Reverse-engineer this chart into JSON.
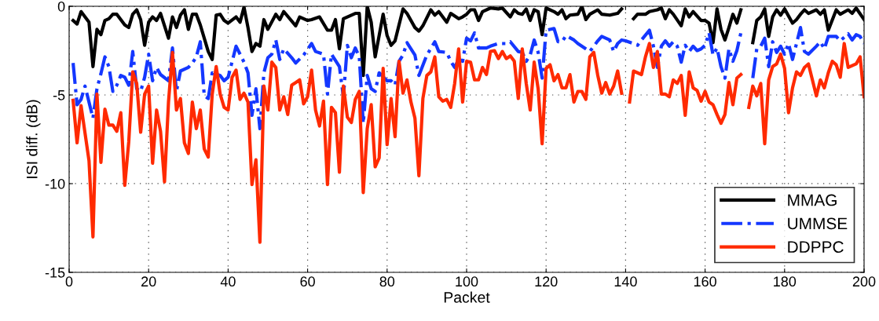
{
  "chart_data": {
    "type": "line",
    "xlabel": "Packet",
    "ylabel": "ISI diff. (dB)",
    "xlim": [
      0,
      200
    ],
    "xticks": [
      0,
      20,
      40,
      60,
      80,
      100,
      120,
      140,
      160,
      180,
      200
    ],
    "ylim": [
      -15,
      0
    ],
    "yticks": [
      -15,
      -10,
      -5,
      0
    ],
    "grid": true,
    "legend": "bottom right",
    "marker": "none",
    "series": [
      {
        "name": "MMAG",
        "color": "#000000",
        "line_style": "solid",
        "x": [
          1,
          2,
          3,
          5,
          6,
          7,
          8,
          9,
          10,
          11,
          12,
          14,
          15,
          16,
          17,
          18,
          19,
          20,
          21,
          22,
          23,
          24,
          25,
          26,
          27,
          28,
          29,
          30,
          31,
          32,
          33,
          35,
          36,
          37,
          38,
          39,
          40,
          42,
          43,
          44,
          45,
          46,
          47,
          48,
          49,
          50,
          52,
          53,
          54,
          57,
          58,
          60,
          61,
          63,
          65,
          66,
          67,
          68,
          69,
          70,
          72,
          73,
          74,
          75,
          76,
          77,
          79,
          80,
          81,
          82,
          84,
          85,
          87,
          88,
          89,
          91,
          92,
          93,
          95,
          96,
          98,
          99,
          100,
          101,
          102,
          103,
          104,
          106,
          108,
          109,
          111,
          112,
          113,
          114,
          115,
          116,
          117,
          118,
          119,
          120,
          122,
          123,
          124,
          125,
          126,
          128,
          129,
          130,
          131,
          133,
          134,
          136,
          138,
          139,
          140,
          142,
          143,
          145,
          146,
          148,
          149,
          150,
          151,
          152,
          154,
          155,
          156,
          157,
          159,
          160,
          161,
          162,
          163,
          164,
          165,
          166,
          167,
          168,
          169,
          170,
          172,
          173,
          174,
          175,
          176,
          177,
          178,
          179,
          180,
          182,
          183,
          184,
          185,
          186,
          188,
          189,
          190,
          191,
          193,
          194,
          196,
          197,
          198,
          200
        ],
        "values": [
          -0.8,
          -1,
          -0.3,
          -0.9,
          -3.4,
          -1.3,
          -1.6,
          -0.8,
          -0.7,
          -0.45,
          -0.45,
          -1.05,
          -1.2,
          -0.45,
          -0.2,
          -0.75,
          -2.2,
          -0.9,
          -0.6,
          -0.8,
          -0.4,
          -1.1,
          -1.8,
          -0.6,
          -1.2,
          -0.5,
          -0.2,
          -1.3,
          -0.45,
          -0.45,
          -1.05,
          -2.55,
          -3.0,
          -0.5,
          -0.45,
          -0.8,
          -0.95,
          -0.6,
          -0.9,
          -0.05,
          -1.2,
          -2.55,
          -2.1,
          -2.25,
          -0.75,
          -1.3,
          -0.45,
          -0.75,
          -0.3,
          -1.1,
          -0.6,
          -0.8,
          -0.75,
          -0.6,
          -1.35,
          -1.35,
          -0.75,
          -2.4,
          -0.7,
          -0.6,
          -0.4,
          -0.4,
          -3.9,
          0,
          -0.9,
          -2.85,
          -0.45,
          -1.65,
          -2.2,
          -1.95,
          -0.15,
          -0.4,
          -1.2,
          -1.4,
          -1.1,
          -0.2,
          -0.5,
          -0.3,
          -0.9,
          -0.4,
          -0.7,
          -0.6,
          -0.45,
          -0.2,
          -0.2,
          -0.8,
          -0.3,
          -0.1,
          -0.15,
          -0.1,
          -0.6,
          -0.2,
          -0.4,
          -0.45,
          -0.15,
          -0.8,
          -0.2,
          -0.3,
          -1.6,
          -0.1,
          -0.3,
          -0.45,
          -0.2,
          -0.7,
          -0.5,
          -0.45,
          0,
          -0.75,
          -0.45,
          -0.2,
          -0.45,
          -0.5,
          -0.4,
          -0.15,
          null,
          -0.7,
          -0.45,
          -0.45,
          -0.3,
          -0.2,
          -0.1,
          -0.7,
          -0.2,
          -0.45,
          -1.1,
          -0.15,
          -0.6,
          -0.3,
          -0.8,
          -0.8,
          -0.95,
          -2.05,
          -0.15,
          -1.3,
          -1.9,
          -1.2,
          -0.45,
          -0.95,
          -0.2,
          null,
          -2.05,
          -0.8,
          -0.6,
          -0.15,
          -1.7,
          -0.6,
          -0.2,
          -0.5,
          -0.15,
          -0.95,
          -0.75,
          -0.45,
          -0.2,
          -0.4,
          -0.2,
          -0.45,
          -0.2,
          -1.35,
          -0.2,
          -0.45,
          -0.2,
          -0.4,
          -0.1,
          -0.75
        ]
      },
      {
        "name": "UMMSE",
        "color": "#1437ff",
        "line_style": "dashdot",
        "x": [
          1,
          2,
          3,
          4,
          6,
          7,
          8,
          9,
          10,
          11,
          12,
          13,
          14,
          15,
          16,
          17,
          18,
          19,
          20,
          21,
          22,
          23,
          25,
          26,
          27,
          28,
          30,
          31,
          32,
          33,
          34,
          35,
          36,
          38,
          39,
          40,
          42,
          44,
          45,
          46,
          47,
          48,
          49,
          50,
          51,
          52,
          53,
          54,
          56,
          57,
          59,
          61,
          62,
          64,
          65,
          66,
          68,
          69,
          70,
          71,
          72,
          73,
          74,
          75,
          76,
          77,
          78,
          80,
          81,
          82,
          83,
          84,
          85,
          87,
          88,
          90,
          92,
          93,
          95,
          96,
          97,
          98,
          99,
          100,
          101,
          102,
          103,
          105,
          106,
          108,
          110,
          111,
          113,
          114,
          115,
          116,
          117,
          118,
          119,
          120,
          122,
          123,
          124,
          125,
          127,
          128,
          130,
          131,
          132,
          133,
          134,
          136,
          137,
          138,
          139,
          140,
          142,
          143,
          144,
          146,
          147,
          148,
          149,
          150,
          151,
          152,
          153,
          154,
          155,
          156,
          157,
          158,
          159,
          160,
          161,
          162,
          163,
          164,
          165,
          166,
          167,
          168,
          169,
          170,
          172,
          173,
          174,
          175,
          176,
          177,
          178,
          179,
          180,
          181,
          182,
          183,
          184,
          185,
          186,
          188,
          189,
          190,
          191,
          193,
          194,
          196,
          197,
          198,
          199,
          200
        ],
        "values": [
          -3.2,
          -5.55,
          -5.25,
          -4.5,
          -6.3,
          -4.65,
          -3.8,
          -2.85,
          -3.4,
          -4.8,
          -4.45,
          -3.9,
          -4.0,
          -4.45,
          -2.55,
          -4.65,
          -4.8,
          -4.0,
          -2.7,
          -4.2,
          -3.45,
          -3.85,
          -4.2,
          -2.35,
          -4.8,
          -3.65,
          -3.45,
          -3.2,
          -2.85,
          -2.0,
          -5.05,
          -5.2,
          -3.75,
          -3.9,
          -4.2,
          -4.0,
          -2.25,
          -3.15,
          -3.75,
          -6.15,
          -4.65,
          -6.9,
          -3.75,
          -2.9,
          -2.7,
          -1.9,
          -3.0,
          -2.4,
          -2.9,
          -3.2,
          -2.75,
          -2.1,
          -2.55,
          -2.7,
          -4.95,
          -2.7,
          -3.4,
          -5.1,
          -2.2,
          -2.9,
          -2.35,
          -2.85,
          -6.6,
          -3.9,
          -4.65,
          -4.8,
          -3.75,
          -4.2,
          -4.2,
          -4.45,
          -3.1,
          -2.75,
          -2.05,
          -2.75,
          -3.9,
          -2.75,
          -2.0,
          -2.55,
          -2.6,
          -3.1,
          -3.45,
          -3.0,
          -3.1,
          -1.8,
          -1.95,
          -1.5,
          -2.35,
          -2.35,
          -2.25,
          -2.1,
          -2.1,
          -2.0,
          -2.55,
          -2.6,
          -3.1,
          -2.75,
          -1.9,
          -2.6,
          -4.05,
          -1.35,
          -1.25,
          -2.0,
          -2.0,
          -1.65,
          -1.9,
          -2.1,
          -2.4,
          -2.55,
          -2.25,
          -1.95,
          -1.7,
          -1.9,
          -2.55,
          -2.1,
          -1.9,
          -1.95,
          -2.1,
          -2.2,
          -1.9,
          -1.35,
          -2.25,
          -3.45,
          -2.25,
          -1.95,
          -2.25,
          -2.0,
          -2.25,
          -3.15,
          -2.2,
          -2.55,
          -2.25,
          -2.5,
          -2.4,
          -2.2,
          -1.5,
          -2.75,
          -2.35,
          -3.4,
          -4.05,
          -2.4,
          -3.1,
          -2.5,
          -1.5,
          null,
          -4.05,
          -2.4,
          -2.25,
          -1.8,
          -3.4,
          -2.0,
          -2.6,
          -2.25,
          -2.7,
          -2.1,
          -3.0,
          -2.1,
          -1.2,
          -2.55,
          -2.7,
          -2.25,
          -2.0,
          -2.4,
          -1.7,
          -1.7,
          -1.95,
          -1.55,
          -1.9,
          -1.6,
          -1.7,
          -2.1
        ]
      },
      {
        "name": "DDPPC",
        "color": "#ff2a00",
        "line_style": "solid",
        "x": [
          1,
          2,
          3,
          5,
          6,
          7,
          8,
          9,
          10,
          11,
          12,
          13,
          14,
          15,
          16,
          17,
          18,
          19,
          20,
          21,
          22,
          23,
          24,
          25,
          26,
          27,
          28,
          29,
          30,
          31,
          32,
          33,
          34,
          35,
          36,
          37,
          38,
          39,
          40,
          41,
          42,
          43,
          44,
          45,
          46,
          47,
          48,
          49,
          50,
          51,
          52,
          53,
          54,
          55,
          56,
          57,
          58,
          59,
          60,
          61,
          62,
          63,
          64,
          65,
          66,
          67,
          68,
          69,
          70,
          71,
          72,
          73,
          74,
          75,
          76,
          77,
          78,
          79,
          80,
          81,
          82,
          83,
          84,
          85,
          86,
          87,
          88,
          89,
          90,
          91,
          92,
          93,
          94,
          95,
          96,
          97,
          98,
          99,
          100,
          101,
          102,
          103,
          104,
          105,
          106,
          107,
          108,
          109,
          110,
          111,
          112,
          113,
          114,
          115,
          116,
          117,
          118,
          119,
          120,
          121,
          122,
          123,
          124,
          125,
          126,
          127,
          128,
          129,
          130,
          131,
          132,
          133,
          134,
          135,
          136,
          137,
          138,
          139,
          140,
          141,
          142,
          143,
          144,
          145,
          146,
          147,
          148,
          149,
          150,
          151,
          152,
          153,
          154,
          155,
          156,
          157,
          158,
          159,
          160,
          161,
          162,
          163,
          164,
          165,
          166,
          167,
          168,
          169,
          170,
          171,
          172,
          173,
          174,
          175,
          176,
          177,
          178,
          179,
          180,
          181,
          182,
          183,
          184,
          185,
          186,
          187,
          188,
          189,
          190,
          191,
          192,
          193,
          194,
          195,
          196,
          197,
          198,
          199,
          200
        ],
        "values": [
          -5.3,
          -7.7,
          -5.6,
          -8.7,
          -13,
          -4.95,
          -8.8,
          -5.8,
          -6.7,
          -6.7,
          -7.05,
          -6.0,
          -10.1,
          -7.65,
          -3.7,
          -4.35,
          -7.1,
          -4.95,
          -4.5,
          -8.85,
          -5.85,
          -7.05,
          -9.9,
          -5.4,
          -2.6,
          -5.85,
          -5.2,
          -7.7,
          -8.3,
          -5.4,
          -6.9,
          -5.85,
          -8.05,
          -8.5,
          -4.95,
          -3.4,
          -4.95,
          -5.7,
          -5.85,
          -4.0,
          -3.6,
          -5.25,
          -4.9,
          -5.4,
          -10.05,
          -8.65,
          -13.3,
          -4.5,
          -5.85,
          -3.15,
          -3.45,
          -5.85,
          -5.1,
          -6.1,
          -4.45,
          -4.3,
          -4.15,
          -5.5,
          -5.1,
          -3.6,
          -5.85,
          -6.75,
          -5.35,
          -10.05,
          -5.7,
          -6.0,
          -9.35,
          -4.5,
          -6.25,
          -6.55,
          -5.25,
          -4.8,
          -10.5,
          -6.9,
          -5.55,
          -9.05,
          -8.55,
          -3.5,
          -7.8,
          -5.2,
          -7.35,
          -3.1,
          -4.9,
          -4.15,
          -5.4,
          -6.3,
          -9.55,
          -5.2,
          -3.9,
          -3.7,
          -2.85,
          -5.1,
          -5.35,
          -5.25,
          -5.7,
          -4.35,
          -2.4,
          -5.4,
          -3.1,
          -3.15,
          -4.15,
          -4.15,
          -3.45,
          -3.85,
          -2.55,
          -2.5,
          -2.95,
          -2.55,
          -2.95,
          -2.8,
          -3.1,
          -5.2,
          -2.4,
          -4.35,
          -5.85,
          -3.15,
          -4.65,
          -7.75,
          -3.5,
          -3.3,
          -4.2,
          -3.85,
          -4.6,
          -4.6,
          -3.85,
          -5.4,
          -4.8,
          -4.8,
          -5.25,
          -2.85,
          -2.6,
          -3.9,
          -4.9,
          -4.3,
          -4.95,
          -4.5,
          -3.65,
          -4.9,
          null,
          -5.4,
          -3.65,
          -3.75,
          -3.85,
          -2.85,
          -2.1,
          -3.45,
          -2.55,
          -4.95,
          -4.95,
          -5.1,
          -4.15,
          -4.35,
          -3.9,
          -6.15,
          -3.7,
          -4.6,
          -4.75,
          -5.35,
          -4.8,
          -5.4,
          -5.55,
          -6.1,
          -6.6,
          -6.1,
          -4.3,
          -5.55,
          -4.05,
          -3.85,
          null,
          -5.7,
          -4.5,
          -5.05,
          -4.35,
          -7.75,
          -4.15,
          -3.4,
          -3.25,
          -2.7,
          -3.5,
          -6.0,
          -4.6,
          -3.7,
          -3.9,
          -3.45,
          -3.25,
          -4.15,
          -5.05,
          -4.15,
          -4.6,
          -3.75,
          -3.1,
          -3.3,
          -4.0,
          -2.1,
          -3.45,
          -3.35,
          -3.25,
          -2.85,
          -5.1
        ]
      }
    ]
  }
}
